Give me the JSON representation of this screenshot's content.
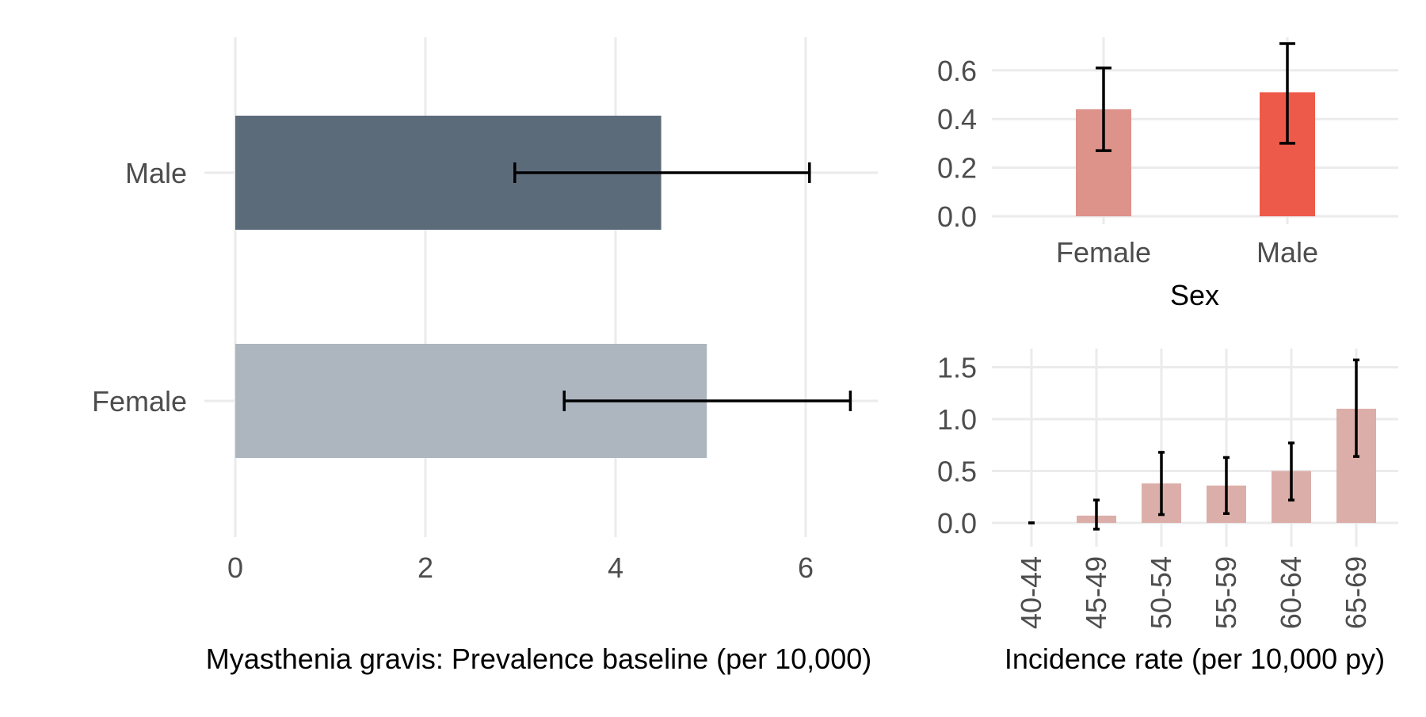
{
  "chart_data": [
    {
      "type": "bar",
      "orientation": "horizontal",
      "xlabel": "Myasthenia gravis: Prevalence baseline (per 10,000)",
      "ylabel": "",
      "xlim": [
        0,
        6.8
      ],
      "xticks": [
        0,
        2,
        4,
        6
      ],
      "grid": true,
      "categories": [
        "Male",
        "Female"
      ],
      "values": [
        4.48,
        4.96
      ],
      "error_low": [
        2.94,
        3.46
      ],
      "error_high": [
        6.04,
        6.47
      ],
      "colors": [
        "#5c6b7a",
        "#adb5bf"
      ]
    },
    {
      "type": "bar",
      "xlabel": "Sex",
      "ylabel": "",
      "ylim": [
        0,
        0.7
      ],
      "yticks": [
        "0.0",
        "0.2",
        "0.4",
        "0.6"
      ],
      "grid": true,
      "categories": [
        "Female",
        "Male"
      ],
      "values": [
        0.44,
        0.51
      ],
      "error_low": [
        0.27,
        0.3
      ],
      "error_high": [
        0.61,
        0.71
      ],
      "colors": [
        "#dd928a",
        "#ee5a4a"
      ]
    },
    {
      "type": "bar",
      "xlabel": "Incidence rate (per 10,000 py)",
      "ylabel": "",
      "ylim": [
        0,
        1.6
      ],
      "yticks": [
        "0.0",
        "0.5",
        "1.0",
        "1.5"
      ],
      "grid": true,
      "categories": [
        "40-44",
        "45-49",
        "50-54",
        "55-59",
        "60-64",
        "65-69"
      ],
      "values": [
        0.0,
        0.07,
        0.38,
        0.36,
        0.5,
        1.1
      ],
      "error_low": [
        0.0,
        -0.06,
        0.08,
        0.09,
        0.22,
        0.64
      ],
      "error_high": [
        0.0,
        0.22,
        0.68,
        0.63,
        0.77,
        1.57
      ],
      "colors": [
        "#dcaea9"
      ]
    }
  ]
}
